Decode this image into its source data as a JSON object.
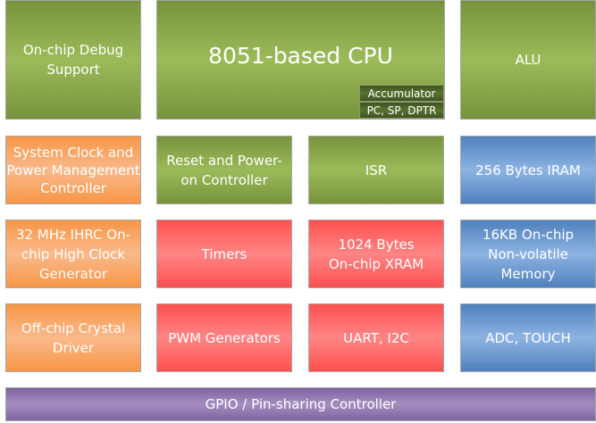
{
  "colors": {
    "green": "#9bbb59",
    "orange": "#f79646",
    "red": "#ff5050",
    "blue": "#4f81bd",
    "purple": "#8064a2"
  },
  "blocks": {
    "debug": "On-chip Debug Support",
    "cpu": "8051-based CPU",
    "accumulator": "Accumulator",
    "registers": "PC, SP, DPTR",
    "alu": "ALU",
    "clock_pm": "System Clock and Power Management Controller",
    "reset": "Reset and Power-on Controller",
    "isr": "ISR",
    "iram": "256 Bytes IRAM",
    "ihrc": "32 MHz IHRC On-chip High Clock Generator",
    "timers": "Timers",
    "xram": "1024 Bytes On-chip XRAM",
    "nvm": "16KB On-chip Non-volatile Memory",
    "crystal": "Off-chip Crystal Driver",
    "pwm": "PWM Generators",
    "uart": "UART, I2C",
    "adc": "ADC, TOUCH",
    "gpio": "GPIO / Pin-sharing Controller"
  }
}
